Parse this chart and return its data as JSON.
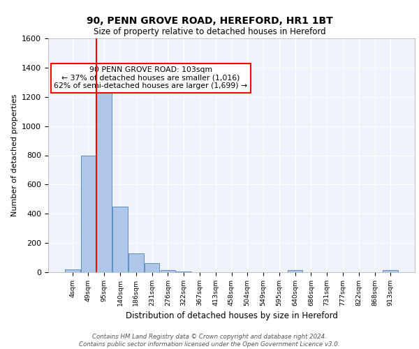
{
  "title1": "90, PENN GROVE ROAD, HEREFORD, HR1 1BT",
  "title2": "Size of property relative to detached houses in Hereford",
  "xlabel": "Distribution of detached houses by size in Hereford",
  "ylabel": "Number of detached properties",
  "bin_labels": [
    "4sqm",
    "49sqm",
    "95sqm",
    "140sqm",
    "186sqm",
    "231sqm",
    "276sqm",
    "322sqm",
    "367sqm",
    "413sqm",
    "458sqm",
    "504sqm",
    "549sqm",
    "595sqm",
    "640sqm",
    "686sqm",
    "731sqm",
    "777sqm",
    "822sqm",
    "868sqm",
    "913sqm"
  ],
  "bar_heights": [
    20,
    800,
    1240,
    450,
    130,
    60,
    15,
    5,
    0,
    0,
    0,
    0,
    0,
    0,
    15,
    0,
    0,
    0,
    0,
    0,
    15
  ],
  "bar_color": "#aec6e8",
  "bar_edge_color": "#5a8fc0",
  "vline_color": "red",
  "vline_x_index": 2,
  "annotation_text": "90 PENN GROVE ROAD: 103sqm\n← 37% of detached houses are smaller (1,016)\n62% of semi-detached houses are larger (1,699) →",
  "annotation_box_color": "white",
  "annotation_box_edge": "red",
  "ylim": [
    0,
    1600
  ],
  "yticks": [
    0,
    200,
    400,
    600,
    800,
    1000,
    1200,
    1400,
    1600
  ],
  "bg_color": "#eef2fb",
  "footer": "Contains HM Land Registry data © Crown copyright and database right 2024.\nContains public sector information licensed under the Open Government Licence v3.0."
}
